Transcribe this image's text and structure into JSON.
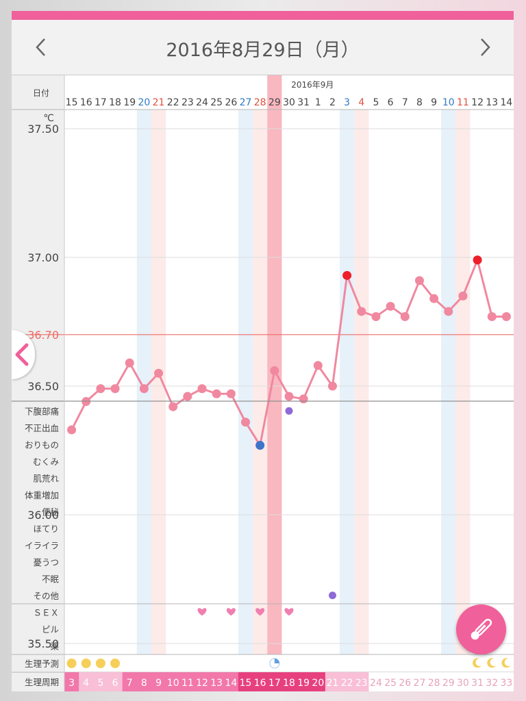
{
  "header": {
    "title": "2016年8月29日（月）",
    "prev_icon": "chevron-left-icon",
    "next_icon": "chevron-right-icon"
  },
  "labels": {
    "date": "日付",
    "month": "2016年9月",
    "unit": "℃",
    "period_forecast": "生理予測",
    "period_cycle": "生理周期"
  },
  "symptom_labels": [
    "下腹部痛",
    "不正出血",
    "おりもの",
    "むくみ",
    "肌荒れ",
    "体重増加",
    "便秘",
    "ほてり",
    "イライラ",
    "憂うつ",
    "不眠",
    "その他"
  ],
  "event_labels": [
    "ＳＥＸ",
    "ピル",
    "薬"
  ],
  "dates": [
    "15",
    "16",
    "17",
    "18",
    "19",
    "20",
    "21",
    "22",
    "23",
    "24",
    "25",
    "26",
    "27",
    "28",
    "29",
    "30",
    "31",
    "1",
    "2",
    "3",
    "4",
    "5",
    "6",
    "7",
    "8",
    "9",
    "10",
    "11",
    "12",
    "13",
    "14"
  ],
  "date_types": [
    "n",
    "n",
    "n",
    "n",
    "n",
    "sat",
    "sun",
    "n",
    "n",
    "n",
    "n",
    "n",
    "sat",
    "sun",
    "n",
    "n",
    "n",
    "n",
    "n",
    "sat",
    "sun",
    "n",
    "n",
    "n",
    "n",
    "n",
    "sat",
    "sun",
    "n",
    "n",
    "n"
  ],
  "cycle_days": [
    "3",
    "4",
    "5",
    "6",
    "7",
    "8",
    "9",
    "10",
    "11",
    "12",
    "13",
    "14",
    "15",
    "16",
    "17",
    "18",
    "19",
    "20",
    "21",
    "22",
    "23",
    "24",
    "25",
    "26",
    "27",
    "28",
    "29",
    "30",
    "31",
    "32",
    "33"
  ],
  "cycle_bg": [
    "#f277aa",
    "#f8bfd6",
    "#f8bfd6",
    "#f8bfd6",
    "#f277aa",
    "#f277aa",
    "#f277aa",
    "#f277aa",
    "#f277aa",
    "#f277aa",
    "#f277aa",
    "#f277aa",
    "#e6407f",
    "#e6407f",
    "#e6407f",
    "#e6407f",
    "#e6407f",
    "#e6407f",
    "#f8bfd6",
    "#f8bfd6",
    "#f8bfd6",
    "#ffffff",
    "#ffffff",
    "#ffffff",
    "#ffffff",
    "#ffffff",
    "#ffffff",
    "#ffffff",
    "#ffffff",
    "#ffffff",
    "#ffffff"
  ],
  "cycle_fg": [
    "#ffffff",
    "#ffffff",
    "#ffffff",
    "#ffffff",
    "#ffffff",
    "#ffffff",
    "#ffffff",
    "#ffffff",
    "#ffffff",
    "#ffffff",
    "#ffffff",
    "#ffffff",
    "#ffffff",
    "#ffffff",
    "#ffffff",
    "#ffffff",
    "#ffffff",
    "#ffffff",
    "#ffffff",
    "#ffffff",
    "#ffffff",
    "#e8a2bb",
    "#e8a2bb",
    "#e8a2bb",
    "#e8a2bb",
    "#e8a2bb",
    "#e8a2bb",
    "#e8a2bb",
    "#e8a2bb",
    "#e8a2bb",
    "#e8a2bb"
  ],
  "forecast_marks": [
    "sun",
    "sun",
    "sun",
    "sun",
    "",
    "",
    "",
    "",
    "",
    "",
    "",
    "",
    "",
    "",
    "moon-quarter",
    "",
    "",
    "",
    "",
    "",
    "",
    "",
    "",
    "",
    "",
    "",
    "",
    "",
    "crescent",
    "crescent",
    "crescent"
  ],
  "sex_days": [
    9,
    11,
    13,
    15
  ],
  "symptom_dots": [
    {
      "day": 15,
      "row": 0
    },
    {
      "day": 18,
      "row": 11
    }
  ],
  "colors": {
    "accent": "#f0609a",
    "line": "#f0889f",
    "baseline": "#ee6a66",
    "low": "#3e75c9",
    "high": "#ee1f2a",
    "symptom": "#8e6ad6",
    "sat": "#2f78c4",
    "sun": "#e0503c",
    "sat_band": "#e6f1fa",
    "sun_band": "#fcebe9",
    "today_band": "#f9b7c0"
  },
  "chart_data": {
    "type": "line",
    "ylim": [
      35.3,
      37.7
    ],
    "yticks": [
      "37.50",
      "37.00",
      "36.70",
      "36.50",
      "36.00",
      "35.50"
    ],
    "ytick_values": [
      37.5,
      37.0,
      36.7,
      36.5,
      36.0,
      35.5
    ],
    "x": [
      "15",
      "16",
      "17",
      "18",
      "19",
      "20",
      "21",
      "22",
      "23",
      "24",
      "25",
      "26",
      "27",
      "28",
      "29",
      "30",
      "31",
      "1",
      "2",
      "3",
      "4",
      "5",
      "6",
      "7",
      "8",
      "9",
      "10",
      "11",
      "12",
      "13",
      "14"
    ],
    "series": [
      {
        "values": [
          36.33,
          36.44,
          36.49,
          36.49,
          36.59,
          36.49,
          36.55,
          36.42,
          36.46,
          36.49,
          36.47,
          36.47,
          36.36,
          36.27,
          36.56,
          36.46,
          36.45,
          36.58,
          36.5,
          36.93,
          36.79,
          36.77,
          36.81,
          36.77,
          36.91,
          36.84,
          36.79,
          36.85,
          36.99,
          36.77,
          36.77
        ]
      }
    ],
    "baseline": 36.7,
    "low_point_index": 13,
    "high_point_indices": [
      19,
      28
    ],
    "today_index": 14,
    "grid": true
  }
}
